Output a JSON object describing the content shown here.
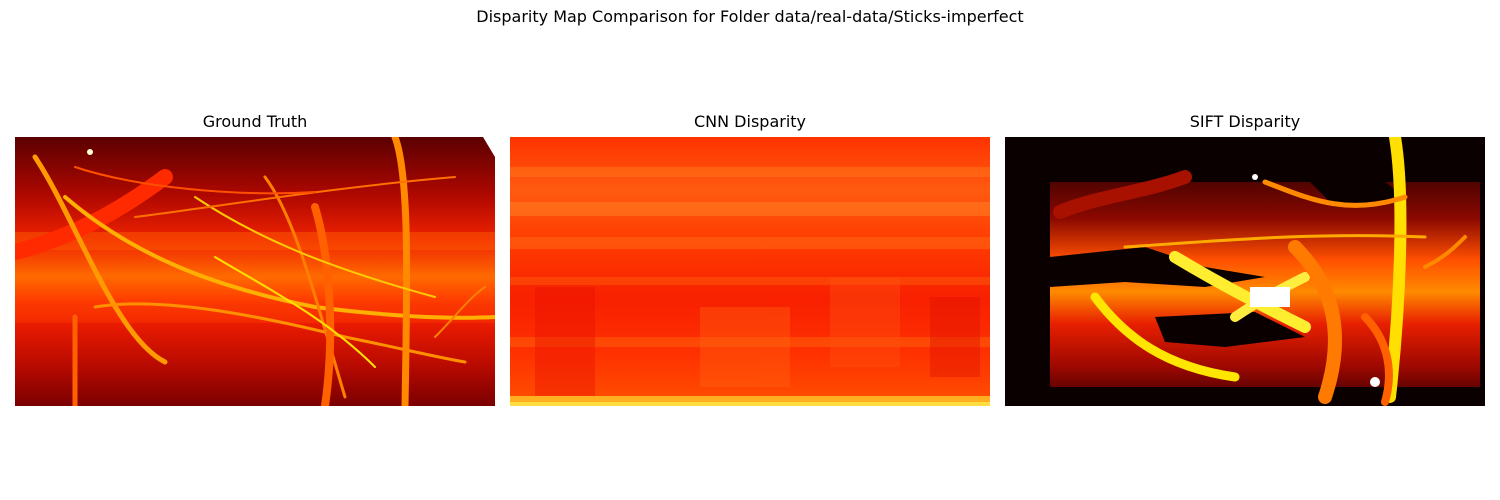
{
  "figure": {
    "title": "Disparity Map Comparison for Folder data/real-data/Sticks-imperfect"
  },
  "panels": [
    {
      "title": "Ground Truth",
      "colormap": "hot"
    },
    {
      "title": "CNN Disparity",
      "colormap": "hot"
    },
    {
      "title": "SIFT Disparity",
      "colormap": "hot"
    }
  ],
  "colors": {
    "dark": "#3a0000",
    "red": "#ff1a00",
    "orange": "#ff8800",
    "yellow": "#ffee22",
    "background": "#ffffff"
  }
}
